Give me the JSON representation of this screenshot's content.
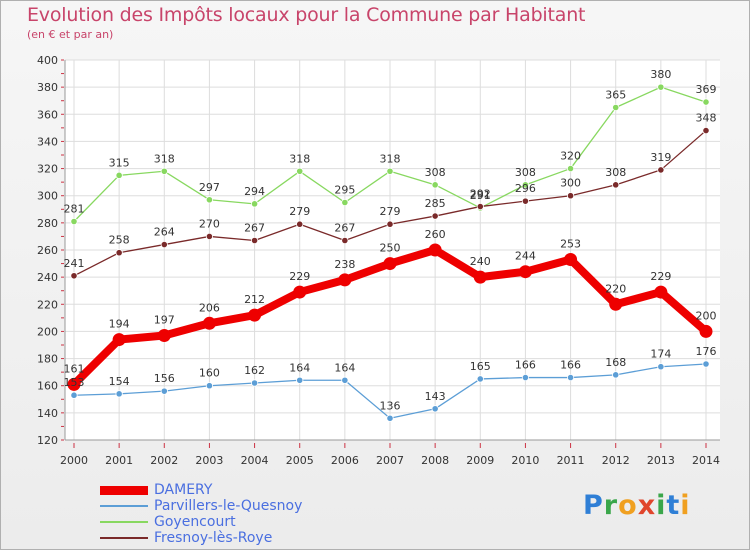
{
  "title": "Evolution des Impôts locaux pour la Commune par Habitant",
  "subtitle": "(en € et par an)",
  "logo": "Proxiti",
  "chart_data": {
    "type": "line",
    "title": "Evolution des Impôts locaux pour la Commune par Habitant",
    "subtitle": "(en € et par an)",
    "x": [
      "2000",
      "2001",
      "2002",
      "2003",
      "2004",
      "2005",
      "2006",
      "2007",
      "2008",
      "2009",
      "2010",
      "2011",
      "2012",
      "2013",
      "2014"
    ],
    "ylim": [
      120,
      400
    ],
    "yticks": [
      120,
      140,
      160,
      180,
      200,
      220,
      240,
      260,
      280,
      300,
      320,
      340,
      360,
      380,
      400
    ],
    "grid": true,
    "legend_position": "bottom-left",
    "series": [
      {
        "name": "DAMERY",
        "color": "#ee0000",
        "values": [
          161,
          194,
          197,
          206,
          212,
          229,
          238,
          250,
          260,
          240,
          244,
          253,
          220,
          229,
          200
        ]
      },
      {
        "name": "Parvillers-le-Quesnoy",
        "color": "#5c9ed6",
        "values": [
          153,
          154,
          156,
          160,
          162,
          164,
          164,
          136,
          143,
          165,
          166,
          166,
          168,
          174,
          176
        ]
      },
      {
        "name": "Goyencourt",
        "color": "#88d860",
        "values": [
          281,
          315,
          318,
          297,
          294,
          318,
          295,
          318,
          308,
          291,
          308,
          320,
          365,
          380,
          369
        ]
      },
      {
        "name": "Fresnoy-lès-Roye",
        "color": "#7a2a2a",
        "values": [
          241,
          258,
          264,
          270,
          267,
          279,
          267,
          279,
          285,
          292,
          296,
          300,
          308,
          319,
          348
        ]
      }
    ]
  }
}
